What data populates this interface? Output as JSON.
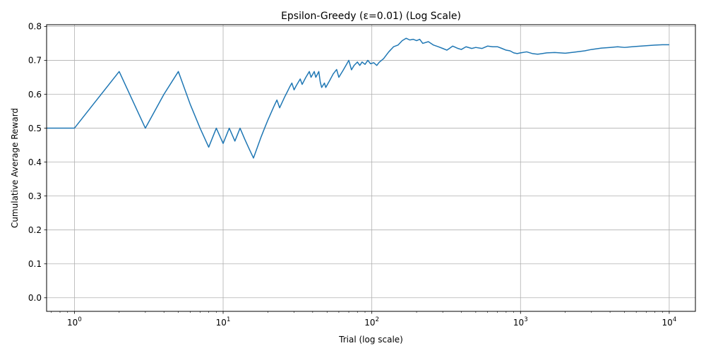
{
  "chart_data": {
    "type": "line",
    "title": "Epsilon-Greedy (ε=0.01) (Log Scale)",
    "xlabel": "Trial (log scale)",
    "ylabel": "Cumulative Average Reward",
    "xscale": "log",
    "xlim": [
      0.65,
      15000
    ],
    "ylim": [
      -0.04,
      0.805
    ],
    "grid": true,
    "x_ticks": [
      {
        "value": 1,
        "base": "10",
        "exp": "0"
      },
      {
        "value": 10,
        "base": "10",
        "exp": "1"
      },
      {
        "value": 100,
        "base": "10",
        "exp": "2"
      },
      {
        "value": 1000,
        "base": "10",
        "exp": "3"
      },
      {
        "value": 10000,
        "base": "10",
        "exp": "4"
      }
    ],
    "y_ticks": [
      {
        "value": 0.0,
        "label": "0.0"
      },
      {
        "value": 0.1,
        "label": "0.1"
      },
      {
        "value": 0.2,
        "label": "0.2"
      },
      {
        "value": 0.3,
        "label": "0.3"
      },
      {
        "value": 0.4,
        "label": "0.4"
      },
      {
        "value": 0.5,
        "label": "0.5"
      },
      {
        "value": 0.6,
        "label": "0.6"
      },
      {
        "value": 0.7,
        "label": "0.7"
      },
      {
        "value": 0.8,
        "label": "0.8"
      }
    ],
    "series": [
      {
        "color": "#1f77b4",
        "points": [
          [
            0.65,
            0.5
          ],
          [
            1,
            0.5
          ],
          [
            2,
            0.667
          ],
          [
            3,
            0.5
          ],
          [
            4,
            0.6
          ],
          [
            5,
            0.667
          ],
          [
            6,
            0.571
          ],
          [
            7,
            0.5
          ],
          [
            8,
            0.444
          ],
          [
            9,
            0.5
          ],
          [
            10,
            0.455
          ],
          [
            11,
            0.5
          ],
          [
            12,
            0.462
          ],
          [
            13,
            0.5
          ],
          [
            14,
            0.467
          ],
          [
            15,
            0.438
          ],
          [
            16,
            0.412
          ],
          [
            17,
            0.444
          ],
          [
            18,
            0.474
          ],
          [
            19,
            0.5
          ],
          [
            20,
            0.524
          ],
          [
            21,
            0.545
          ],
          [
            22,
            0.565
          ],
          [
            23,
            0.583
          ],
          [
            24,
            0.56
          ],
          [
            25,
            0.577
          ],
          [
            26,
            0.593
          ],
          [
            27,
            0.607
          ],
          [
            28,
            0.621
          ],
          [
            29,
            0.633
          ],
          [
            30,
            0.613
          ],
          [
            31,
            0.625
          ],
          [
            33,
            0.645
          ],
          [
            34,
            0.629
          ],
          [
            36,
            0.65
          ],
          [
            38,
            0.667
          ],
          [
            39,
            0.65
          ],
          [
            41,
            0.667
          ],
          [
            42,
            0.65
          ],
          [
            44,
            0.667
          ],
          [
            45,
            0.636
          ],
          [
            46,
            0.62
          ],
          [
            48,
            0.633
          ],
          [
            49,
            0.62
          ],
          [
            52,
            0.64
          ],
          [
            55,
            0.66
          ],
          [
            58,
            0.673
          ],
          [
            60,
            0.65
          ],
          [
            64,
            0.67
          ],
          [
            68,
            0.69
          ],
          [
            70,
            0.7
          ],
          [
            73,
            0.672
          ],
          [
            76,
            0.685
          ],
          [
            80,
            0.695
          ],
          [
            83,
            0.685
          ],
          [
            86,
            0.695
          ],
          [
            90,
            0.688
          ],
          [
            94,
            0.7
          ],
          [
            98,
            0.69
          ],
          [
            103,
            0.693
          ],
          [
            108,
            0.685
          ],
          [
            112,
            0.694
          ],
          [
            120,
            0.705
          ],
          [
            130,
            0.725
          ],
          [
            140,
            0.74
          ],
          [
            150,
            0.745
          ],
          [
            160,
            0.758
          ],
          [
            170,
            0.765
          ],
          [
            180,
            0.76
          ],
          [
            190,
            0.762
          ],
          [
            200,
            0.758
          ],
          [
            210,
            0.762
          ],
          [
            220,
            0.75
          ],
          [
            240,
            0.755
          ],
          [
            260,
            0.745
          ],
          [
            280,
            0.74
          ],
          [
            300,
            0.735
          ],
          [
            320,
            0.73
          ],
          [
            350,
            0.742
          ],
          [
            380,
            0.735
          ],
          [
            400,
            0.732
          ],
          [
            430,
            0.74
          ],
          [
            470,
            0.735
          ],
          [
            500,
            0.738
          ],
          [
            550,
            0.735
          ],
          [
            600,
            0.742
          ],
          [
            650,
            0.74
          ],
          [
            700,
            0.74
          ],
          [
            750,
            0.735
          ],
          [
            800,
            0.73
          ],
          [
            850,
            0.728
          ],
          [
            900,
            0.722
          ],
          [
            950,
            0.72
          ],
          [
            1000,
            0.722
          ],
          [
            1100,
            0.725
          ],
          [
            1200,
            0.72
          ],
          [
            1300,
            0.718
          ],
          [
            1400,
            0.72
          ],
          [
            1500,
            0.722
          ],
          [
            1700,
            0.723
          ],
          [
            2000,
            0.721
          ],
          [
            2300,
            0.724
          ],
          [
            2700,
            0.728
          ],
          [
            3000,
            0.732
          ],
          [
            3500,
            0.736
          ],
          [
            4000,
            0.738
          ],
          [
            4500,
            0.74
          ],
          [
            5000,
            0.738
          ],
          [
            6000,
            0.741
          ],
          [
            7000,
            0.743
          ],
          [
            8000,
            0.745
          ],
          [
            9000,
            0.746
          ],
          [
            10000,
            0.746
          ]
        ]
      }
    ]
  }
}
